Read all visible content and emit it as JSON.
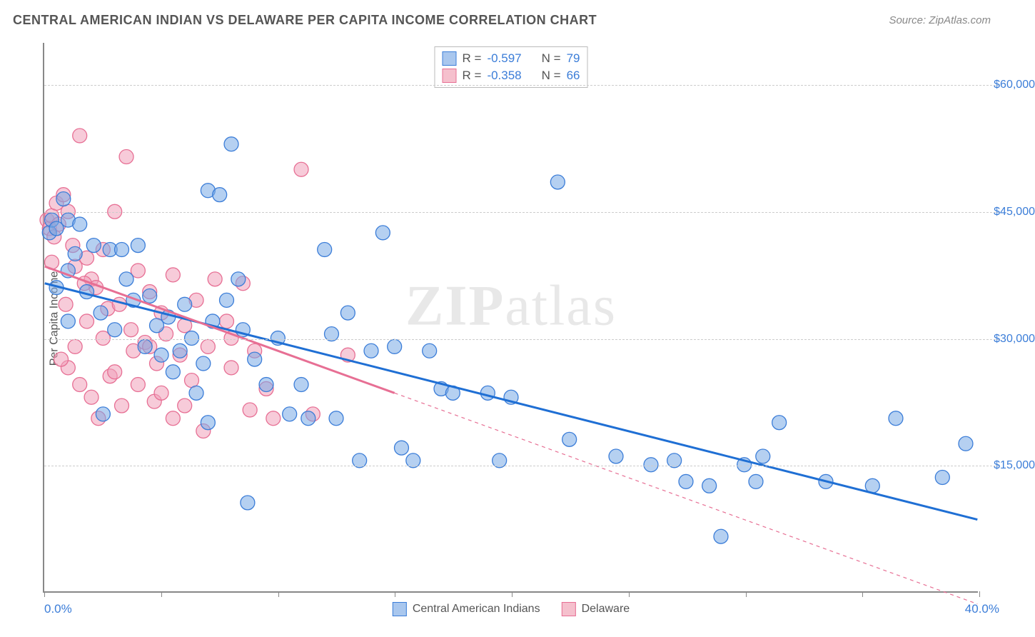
{
  "title": "CENTRAL AMERICAN INDIAN VS DELAWARE PER CAPITA INCOME CORRELATION CHART",
  "source_label": "Source: ZipAtlas.com",
  "ylabel": "Per Capita Income",
  "watermark_bold": "ZIP",
  "watermark_rest": "atlas",
  "x_axis": {
    "min_label": "0.0%",
    "max_label": "40.0%",
    "min": 0,
    "max": 40,
    "tick_positions": [
      0,
      5,
      10,
      15,
      20,
      25,
      30,
      35,
      40
    ]
  },
  "y_axis": {
    "min": 0,
    "max": 65000,
    "ticks": [
      {
        "value": 15000,
        "label": "$15,000"
      },
      {
        "value": 30000,
        "label": "$30,000"
      },
      {
        "value": 45000,
        "label": "$45,000"
      },
      {
        "value": 60000,
        "label": "$60,000"
      }
    ],
    "grid_color": "#cccccc"
  },
  "series": [
    {
      "name": "Central American Indians",
      "swatch_fill": "#a9c7ee",
      "swatch_border": "#3b7dd8",
      "point_fill": "rgba(120,170,230,0.55)",
      "point_stroke": "#3b7dd8",
      "point_radius": 10,
      "trend_color": "#1f6fd4",
      "trend_width": 3,
      "trend_dash": "none",
      "trend": {
        "x1": 0,
        "y1": 36500,
        "x2": 40,
        "y2": 8500
      },
      "stats": {
        "R_label": "R =",
        "R": "-0.597",
        "N_label": "N =",
        "N": "79"
      },
      "points": [
        [
          0.2,
          42500
        ],
        [
          0.3,
          44000
        ],
        [
          0.5,
          43000
        ],
        [
          0.8,
          46500
        ],
        [
          1.0,
          44000
        ],
        [
          1.3,
          40000
        ],
        [
          1.0,
          38000
        ],
        [
          0.5,
          36000
        ],
        [
          1.5,
          43500
        ],
        [
          2.1,
          41000
        ],
        [
          2.4,
          33000
        ],
        [
          1.8,
          35500
        ],
        [
          2.8,
          40500
        ],
        [
          3.0,
          31000
        ],
        [
          3.3,
          40500
        ],
        [
          3.5,
          37000
        ],
        [
          3.8,
          34500
        ],
        [
          4.0,
          41000
        ],
        [
          4.3,
          29000
        ],
        [
          4.5,
          35000
        ],
        [
          4.8,
          31500
        ],
        [
          5.0,
          28000
        ],
        [
          5.3,
          32500
        ],
        [
          5.5,
          26000
        ],
        [
          5.8,
          28500
        ],
        [
          6.0,
          34000
        ],
        [
          6.3,
          30000
        ],
        [
          6.5,
          23500
        ],
        [
          6.8,
          27000
        ],
        [
          7.0,
          47500
        ],
        [
          7.5,
          47000
        ],
        [
          7.0,
          20000
        ],
        [
          7.2,
          32000
        ],
        [
          7.8,
          34500
        ],
        [
          8.0,
          53000
        ],
        [
          8.3,
          37000
        ],
        [
          8.5,
          31000
        ],
        [
          9.0,
          27500
        ],
        [
          9.5,
          24500
        ],
        [
          8.7,
          10500
        ],
        [
          10.0,
          30000
        ],
        [
          10.5,
          21000
        ],
        [
          11.0,
          24500
        ],
        [
          11.3,
          20500
        ],
        [
          12.0,
          40500
        ],
        [
          12.3,
          30500
        ],
        [
          12.5,
          20500
        ],
        [
          13.0,
          33000
        ],
        [
          13.5,
          15500
        ],
        [
          14.0,
          28500
        ],
        [
          14.5,
          42500
        ],
        [
          15.0,
          29000
        ],
        [
          15.3,
          17000
        ],
        [
          15.8,
          15500
        ],
        [
          16.5,
          28500
        ],
        [
          17.0,
          24000
        ],
        [
          17.5,
          23500
        ],
        [
          19.0,
          23500
        ],
        [
          19.5,
          15500
        ],
        [
          20.0,
          23000
        ],
        [
          22.0,
          48500
        ],
        [
          22.5,
          18000
        ],
        [
          24.5,
          16000
        ],
        [
          26.0,
          15000
        ],
        [
          27.0,
          15500
        ],
        [
          27.5,
          13000
        ],
        [
          28.5,
          12500
        ],
        [
          29.0,
          6500
        ],
        [
          30.0,
          15000
        ],
        [
          30.5,
          13000
        ],
        [
          30.8,
          16000
        ],
        [
          31.5,
          20000
        ],
        [
          33.5,
          13000
        ],
        [
          35.5,
          12500
        ],
        [
          36.5,
          20500
        ],
        [
          38.5,
          13500
        ],
        [
          39.5,
          17500
        ],
        [
          1.0,
          32000
        ],
        [
          2.5,
          21000
        ]
      ]
    },
    {
      "name": "Delaware",
      "swatch_fill": "#f5c0cd",
      "swatch_border": "#e76f94",
      "point_fill": "rgba(240,160,185,0.55)",
      "point_stroke": "#e76f94",
      "point_radius": 10,
      "trend_color": "#e76f94",
      "trend_width": 3,
      "trend_dash": "none",
      "trend": {
        "x1": 0,
        "y1": 38500,
        "x2": 15,
        "y2": 23500
      },
      "trend_ext_dash": "5,5",
      "trend_ext": {
        "x1": 15,
        "y1": 23500,
        "x2": 40,
        "y2": -1500
      },
      "stats": {
        "R_label": "R =",
        "R": "-0.358",
        "N_label": "N =",
        "N": "66"
      },
      "points": [
        [
          0.1,
          44000
        ],
        [
          0.2,
          43000
        ],
        [
          0.3,
          44500
        ],
        [
          0.4,
          42000
        ],
        [
          0.5,
          46000
        ],
        [
          0.6,
          43500
        ],
        [
          0.8,
          47000
        ],
        [
          1.0,
          45000
        ],
        [
          1.2,
          41000
        ],
        [
          1.3,
          38500
        ],
        [
          1.5,
          54000
        ],
        [
          1.8,
          39500
        ],
        [
          2.0,
          37000
        ],
        [
          2.2,
          36000
        ],
        [
          2.5,
          40500
        ],
        [
          2.7,
          33500
        ],
        [
          3.0,
          45000
        ],
        [
          3.2,
          34000
        ],
        [
          3.5,
          51500
        ],
        [
          3.7,
          31000
        ],
        [
          4.0,
          38000
        ],
        [
          4.3,
          29500
        ],
        [
          4.5,
          35500
        ],
        [
          4.8,
          27000
        ],
        [
          5.0,
          33000
        ],
        [
          5.2,
          30500
        ],
        [
          5.5,
          37500
        ],
        [
          5.8,
          28000
        ],
        [
          6.0,
          31500
        ],
        [
          6.3,
          25000
        ],
        [
          6.5,
          34500
        ],
        [
          7.0,
          29000
        ],
        [
          7.3,
          37000
        ],
        [
          7.8,
          32000
        ],
        [
          8.0,
          26500
        ],
        [
          8.5,
          36500
        ],
        [
          9.0,
          28500
        ],
        [
          9.5,
          24000
        ],
        [
          11.0,
          50000
        ],
        [
          9.8,
          20500
        ],
        [
          1.0,
          26500
        ],
        [
          1.5,
          24500
        ],
        [
          2.0,
          23000
        ],
        [
          2.3,
          20500
        ],
        [
          2.8,
          25500
        ],
        [
          0.7,
          27500
        ],
        [
          1.3,
          29000
        ],
        [
          3.3,
          22000
        ],
        [
          4.0,
          24500
        ],
        [
          4.7,
          22500
        ],
        [
          5.5,
          20500
        ],
        [
          6.0,
          22000
        ],
        [
          6.8,
          19000
        ],
        [
          1.8,
          32000
        ],
        [
          2.5,
          30000
        ],
        [
          3.8,
          28500
        ],
        [
          0.3,
          39000
        ],
        [
          0.9,
          34000
        ],
        [
          1.7,
          36500
        ],
        [
          3.0,
          26000
        ],
        [
          4.5,
          29000
        ],
        [
          5.0,
          23500
        ],
        [
          8.0,
          30000
        ],
        [
          8.8,
          21500
        ],
        [
          13.0,
          28000
        ],
        [
          11.5,
          21000
        ]
      ]
    }
  ]
}
